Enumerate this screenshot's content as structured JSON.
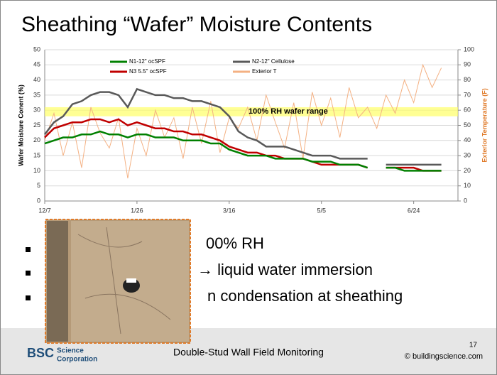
{
  "slide": {
    "title": "Sheathing “Wafer” Moisture Contents",
    "bullets": [
      "00% RH",
      "→ liquid water immersion",
      "n condensation at sheathing"
    ],
    "footer": "Double-Stud Wall Field Monitoring",
    "page": "17",
    "copyright": "© buildingscience.com",
    "logo": {
      "mark": "BSC",
      "line1": "Science",
      "line2": "Corporation"
    }
  },
  "chart_data": {
    "type": "line",
    "y_label": "Wafer Moisture Conent (%)",
    "y2_label": "Exterior Temperature (F)",
    "x": [
      0,
      5,
      10,
      15,
      20,
      25,
      30,
      35,
      40,
      45,
      50,
      55,
      60,
      65,
      70,
      75,
      80,
      85,
      90,
      95,
      100,
      105,
      110,
      115,
      120,
      125,
      130,
      135,
      140,
      145,
      150,
      155,
      160,
      165,
      170,
      175,
      180,
      185,
      190,
      195,
      200,
      205,
      210,
      215
    ],
    "xlim": [
      0,
      224
    ],
    "xticks": [
      {
        "value": 0,
        "label": "12/7"
      },
      {
        "value": 50,
        "label": "1/26"
      },
      {
        "value": 100,
        "label": "3/16"
      },
      {
        "value": 150,
        "label": "5/5"
      },
      {
        "value": 200,
        "label": "6/24"
      }
    ],
    "ylim": [
      0,
      50
    ],
    "yticks": [
      0,
      5,
      10,
      15,
      20,
      25,
      30,
      35,
      40,
      45,
      50
    ],
    "y2lim": [
      0,
      100
    ],
    "y2ticks": [
      0,
      10,
      20,
      30,
      40,
      50,
      60,
      70,
      80,
      90,
      100
    ],
    "grid": true,
    "band": {
      "label": "100% RH wafer range",
      "range": [
        28,
        31
      ],
      "color": "#ffff66"
    },
    "series": [
      {
        "name": "N1-12\" ocSPF",
        "color": "#008000",
        "values": [
          19,
          20,
          21,
          21,
          22,
          22,
          23,
          22,
          22,
          21,
          22,
          22,
          21,
          21,
          21,
          20,
          20,
          20,
          19,
          19,
          17,
          16,
          15,
          15,
          15,
          14,
          14,
          14,
          14,
          13,
          13,
          13,
          12,
          12,
          12,
          11,
          null,
          11,
          11,
          10,
          10,
          10,
          10,
          10
        ]
      },
      {
        "name": "N2-12\" Cellulose",
        "color": "#595959",
        "values": [
          22,
          26,
          28,
          32,
          33,
          35,
          36,
          36,
          35,
          31,
          37,
          36,
          35,
          35,
          34,
          34,
          33,
          33,
          32,
          31,
          28,
          23,
          21,
          20,
          18,
          18,
          18,
          17,
          16,
          15,
          15,
          15,
          14,
          14,
          14,
          14,
          null,
          12,
          12,
          12,
          12,
          12,
          12,
          12
        ]
      },
      {
        "name": "N3 5.5\" ocSPF",
        "color": "#c00000",
        "values": [
          21,
          24,
          25,
          26,
          26,
          27,
          27,
          26,
          27,
          25,
          26,
          25,
          24,
          24,
          23,
          23,
          22,
          22,
          21,
          20,
          18,
          17,
          16,
          16,
          15,
          15,
          14,
          14,
          14,
          13,
          12,
          12,
          12,
          12,
          12,
          11,
          null,
          11,
          11,
          11,
          11,
          10,
          10,
          10
        ]
      },
      {
        "name": "Exterior T",
        "color": "#f4b183",
        "axis": "y2",
        "values": [
          40,
          58,
          30,
          52,
          22,
          62,
          45,
          35,
          55,
          15,
          48,
          30,
          60,
          42,
          55,
          28,
          62,
          38,
          66,
          32,
          55,
          48,
          62,
          40,
          70,
          52,
          35,
          65,
          28,
          72,
          50,
          68,
          42,
          75,
          55,
          62,
          48,
          70,
          58,
          80,
          65,
          90,
          75,
          88
        ]
      }
    ]
  }
}
